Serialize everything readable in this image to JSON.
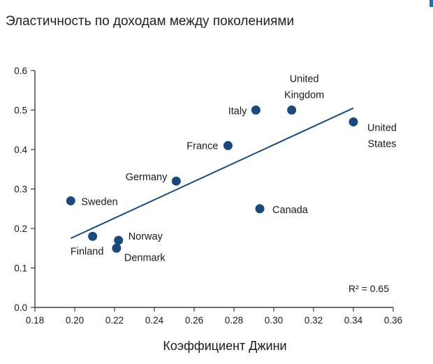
{
  "chart_data": {
    "type": "scatter",
    "title": "Эластичность по доходам между поколениями",
    "xlabel": "Коэффициент Джини",
    "ylabel": "",
    "xlim": [
      0.18,
      0.36
    ],
    "ylim": [
      0.0,
      0.6
    ],
    "xticks": [
      "0.18",
      "0.20",
      "0.22",
      "0.24",
      "0.26",
      "0.28",
      "0.30",
      "0.32",
      "0.34",
      "0.36"
    ],
    "yticks": [
      "0.0",
      "0.1",
      "0.2",
      "0.3",
      "0.4",
      "0.5",
      "0.6"
    ],
    "grid": false,
    "points": [
      {
        "label": [
          "Sweden"
        ],
        "x": 0.198,
        "y": 0.27
      },
      {
        "label": [
          "Finland"
        ],
        "x": 0.209,
        "y": 0.18
      },
      {
        "label": [
          "Norway"
        ],
        "x": 0.222,
        "y": 0.17
      },
      {
        "label": [
          "Denmark"
        ],
        "x": 0.221,
        "y": 0.15
      },
      {
        "label": [
          "Germany"
        ],
        "x": 0.251,
        "y": 0.32
      },
      {
        "label": [
          "France"
        ],
        "x": 0.277,
        "y": 0.41
      },
      {
        "label": [
          "Italy"
        ],
        "x": 0.291,
        "y": 0.5
      },
      {
        "label": [
          "Canada"
        ],
        "x": 0.293,
        "y": 0.25
      },
      {
        "label": [
          "United",
          "Kingdom"
        ],
        "x": 0.309,
        "y": 0.5
      },
      {
        "label": [
          "United",
          "States"
        ],
        "x": 0.34,
        "y": 0.47
      }
    ],
    "trendline": {
      "x": [
        0.198,
        0.34
      ],
      "y": [
        0.175,
        0.505
      ]
    },
    "r_squared_label": "R² = 0.65",
    "marker_color": "#1a4a7c",
    "line_color": "#1a4a7c"
  }
}
